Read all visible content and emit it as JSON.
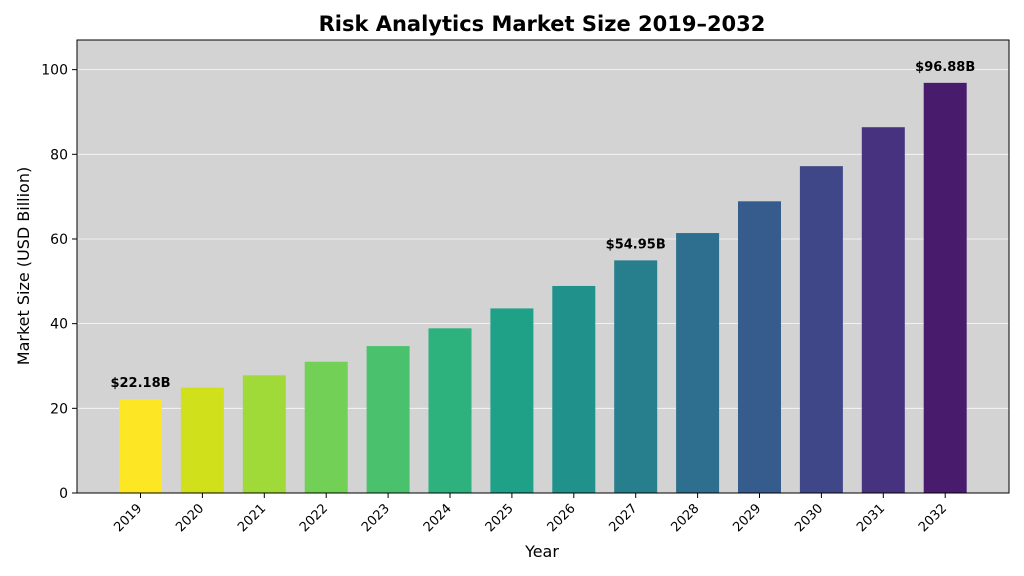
{
  "chart_data": {
    "type": "bar",
    "title": "Risk Analytics Market Size 2019–2032",
    "xlabel": "Year",
    "ylabel": "Market Size (USD Billion)",
    "ylim": [
      0,
      107
    ],
    "yticks": [
      0,
      20,
      40,
      60,
      80,
      100
    ],
    "grid": true,
    "categories": [
      "2019",
      "2020",
      "2021",
      "2022",
      "2023",
      "2024",
      "2025",
      "2026",
      "2027",
      "2028",
      "2029",
      "2030",
      "2031",
      "2032"
    ],
    "values": [
      22.18,
      24.9,
      27.8,
      31.0,
      34.7,
      38.9,
      43.6,
      48.9,
      54.95,
      61.4,
      68.9,
      77.2,
      86.4,
      96.88
    ],
    "colors": [
      "#fde725",
      "#d0e11c",
      "#a0da39",
      "#73d056",
      "#4ac16d",
      "#2db27d",
      "#1fa187",
      "#21918c",
      "#277f8e",
      "#2e6e8e",
      "#365c8d",
      "#3f4788",
      "#46327e",
      "#481b6d"
    ],
    "annotations": [
      {
        "index": 0,
        "text": "$22.18B"
      },
      {
        "index": 8,
        "text": "$54.95B"
      },
      {
        "index": 13,
        "text": "$96.88B"
      }
    ],
    "plot_background": "#d3d3d3"
  }
}
